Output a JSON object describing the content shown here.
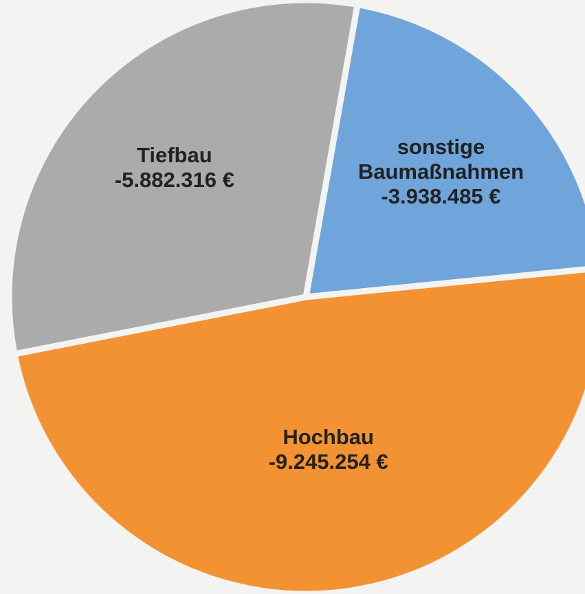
{
  "chart_data": {
    "type": "pie",
    "categories": [
      "sonstige Baumaßnahmen",
      "Hochbau",
      "Tiefbau"
    ],
    "values": [
      -3938485,
      -9245254,
      -5882316
    ],
    "value_labels": [
      "-3.938.485 €",
      "-9.245.254 €",
      "-5.882.316 €"
    ],
    "colors": [
      "#6fa5da",
      "#f39233",
      "#ababab"
    ]
  }
}
